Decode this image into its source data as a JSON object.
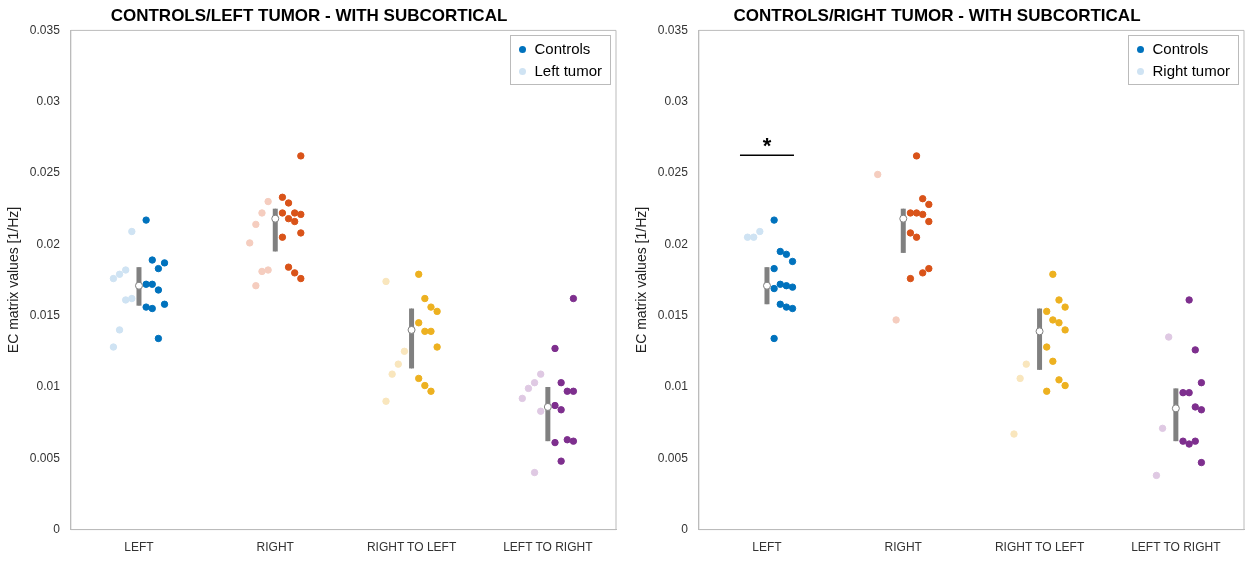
{
  "chart_data": [
    {
      "type": "scatter",
      "title": "CONTROLS/LEFT TUMOR - WITH SUBCORTICAL",
      "ylabel": "EC matrix values [1/Hz]",
      "categories": [
        "LEFT",
        "RIGHT",
        "RIGHT TO LEFT",
        "LEFT TO RIGHT"
      ],
      "ylim": [
        0,
        0.035
      ],
      "yticks": [
        0,
        0.005,
        0.01,
        0.015,
        0.02,
        0.025,
        0.03,
        0.035
      ],
      "legend": "top right",
      "grid": false,
      "marker": "circle",
      "series": [
        {
          "name": "Controls",
          "color": "#0072bd",
          "x": [
            "LEFT",
            "LEFT",
            "LEFT",
            "LEFT",
            "LEFT",
            "LEFT",
            "LEFT",
            "LEFT",
            "LEFT",
            "LEFT",
            "LEFT",
            "RIGHT",
            "RIGHT",
            "RIGHT",
            "RIGHT",
            "RIGHT",
            "RIGHT",
            "RIGHT",
            "RIGHT",
            "RIGHT",
            "RIGHT",
            "RIGHT",
            "RIGHT",
            "RIGHT",
            "RIGHT TO LEFT",
            "RIGHT TO LEFT",
            "RIGHT TO LEFT",
            "RIGHT TO LEFT",
            "RIGHT TO LEFT",
            "RIGHT TO LEFT",
            "RIGHT TO LEFT",
            "RIGHT TO LEFT",
            "RIGHT TO LEFT",
            "RIGHT TO LEFT",
            "RIGHT TO LEFT",
            "LEFT TO RIGHT",
            "LEFT TO RIGHT",
            "LEFT TO RIGHT",
            "LEFT TO RIGHT",
            "LEFT TO RIGHT",
            "LEFT TO RIGHT",
            "LEFT TO RIGHT",
            "LEFT TO RIGHT",
            "LEFT TO RIGHT",
            "LEFT TO RIGHT",
            "LEFT TO RIGHT"
          ],
          "values": [
            0.0217,
            0.0189,
            0.0183,
            0.0187,
            0.0172,
            0.0172,
            0.0168,
            0.0158,
            0.0156,
            0.0155,
            0.0134,
            0.0262,
            0.0233,
            0.0229,
            0.0222,
            0.0221,
            0.0222,
            0.0218,
            0.0216,
            0.0208,
            0.0205,
            0.0184,
            0.018,
            0.0176,
            0.0179,
            0.0162,
            0.0156,
            0.0153,
            0.0145,
            0.0139,
            0.0139,
            0.0128,
            0.0106,
            0.0101,
            0.0097,
            0.0162,
            0.0127,
            0.0103,
            0.0097,
            0.0097,
            0.0087,
            0.0084,
            0.0063,
            0.0062,
            0.0061,
            0.0048
          ],
          "colors": [
            "#0072bd",
            "#0072bd",
            "#0072bd",
            "#0072bd",
            "#0072bd",
            "#0072bd",
            "#0072bd",
            "#0072bd",
            "#0072bd",
            "#0072bd",
            "#0072bd",
            "#d95319",
            "#d95319",
            "#d95319",
            "#d95319",
            "#d95319",
            "#d95319",
            "#d95319",
            "#d95319",
            "#d95319",
            "#d95319",
            "#d95319",
            "#d95319",
            "#d95319",
            "#edb120",
            "#edb120",
            "#edb120",
            "#edb120",
            "#edb120",
            "#edb120",
            "#edb120",
            "#edb120",
            "#edb120",
            "#edb120",
            "#edb120",
            "#7e2f8e",
            "#7e2f8e",
            "#7e2f8e",
            "#7e2f8e",
            "#7e2f8e",
            "#7e2f8e",
            "#7e2f8e",
            "#7e2f8e",
            "#7e2f8e",
            "#7e2f8e",
            "#7e2f8e"
          ]
        },
        {
          "name": "Left tumor",
          "color": "#cfe3f3",
          "x": [
            "LEFT",
            "LEFT",
            "LEFT",
            "LEFT",
            "LEFT",
            "LEFT",
            "LEFT",
            "LEFT",
            "RIGHT",
            "RIGHT",
            "RIGHT",
            "RIGHT",
            "RIGHT",
            "RIGHT",
            "RIGHT",
            "RIGHT TO LEFT",
            "RIGHT TO LEFT",
            "RIGHT TO LEFT",
            "RIGHT TO LEFT",
            "RIGHT TO LEFT",
            "LEFT TO RIGHT",
            "LEFT TO RIGHT",
            "LEFT TO RIGHT",
            "LEFT TO RIGHT",
            "LEFT TO RIGHT",
            "LEFT TO RIGHT"
          ],
          "values": [
            0.0209,
            0.0182,
            0.0179,
            0.0176,
            0.0162,
            0.0161,
            0.014,
            0.0128,
            0.023,
            0.0222,
            0.0214,
            0.0201,
            0.0182,
            0.0181,
            0.0171,
            0.0174,
            0.0125,
            0.0116,
            0.0109,
            0.009,
            0.0109,
            0.0103,
            0.0099,
            0.0092,
            0.0083,
            0.004
          ],
          "colors": [
            "#cfe3f3",
            "#cfe3f3",
            "#cfe3f3",
            "#cfe3f3",
            "#cfe3f3",
            "#cfe3f3",
            "#cfe3f3",
            "#cfe3f3",
            "#f5cdbf",
            "#f5cdbf",
            "#f5cdbf",
            "#f5cdbf",
            "#f5cdbf",
            "#f5cdbf",
            "#f5cdbf",
            "#f9e6bd",
            "#f9e6bd",
            "#f9e6bd",
            "#f9e6bd",
            "#f9e6bd",
            "#dfc9e3",
            "#dfc9e3",
            "#dfc9e3",
            "#dfc9e3",
            "#dfc9e3",
            "#dfc9e3"
          ]
        },
        {
          "type": "box",
          "color": "#808080",
          "boxes": [
            {
              "low": 0.0157,
              "q1": 0.0157,
              "median": 0.0171,
              "q3": 0.0184,
              "high": 0.0184
            },
            {
              "low": 0.0195,
              "q1": 0.0195,
              "median": 0.0218,
              "q3": 0.0225,
              "high": 0.0225
            },
            {
              "low": 0.0113,
              "q1": 0.0113,
              "median": 0.014,
              "q3": 0.0155,
              "high": 0.0155
            },
            {
              "low": 0.0062,
              "q1": 0.0062,
              "median": 0.0086,
              "q3": 0.01,
              "high": 0.01
            }
          ]
        }
      ]
    },
    {
      "type": "scatter",
      "title": "CONTROLS/RIGHT TUMOR - WITH SUBCORTICAL",
      "ylabel": "EC matrix values [1/Hz]",
      "categories": [
        "LEFT",
        "RIGHT",
        "RIGHT TO LEFT",
        "LEFT TO RIGHT"
      ],
      "ylim": [
        0,
        0.035
      ],
      "yticks": [
        0,
        0.005,
        0.01,
        0.015,
        0.02,
        0.025,
        0.03,
        0.035
      ],
      "legend": "top right",
      "grid": false,
      "marker": "circle",
      "annotations": [
        "*"
      ],
      "series": [
        {
          "name": "Controls",
          "color": "#0072bd",
          "x": [
            "LEFT",
            "LEFT",
            "LEFT",
            "LEFT",
            "LEFT",
            "LEFT",
            "LEFT",
            "LEFT",
            "LEFT",
            "LEFT",
            "LEFT",
            "LEFT",
            "LEFT",
            "RIGHT",
            "RIGHT",
            "RIGHT",
            "RIGHT",
            "RIGHT",
            "RIGHT",
            "RIGHT",
            "RIGHT",
            "RIGHT",
            "RIGHT",
            "RIGHT",
            "RIGHT",
            "RIGHT TO LEFT",
            "RIGHT TO LEFT",
            "RIGHT TO LEFT",
            "RIGHT TO LEFT",
            "RIGHT TO LEFT",
            "RIGHT TO LEFT",
            "RIGHT TO LEFT",
            "RIGHT TO LEFT",
            "RIGHT TO LEFT",
            "RIGHT TO LEFT",
            "RIGHT TO LEFT",
            "RIGHT TO LEFT",
            "LEFT TO RIGHT",
            "LEFT TO RIGHT",
            "LEFT TO RIGHT",
            "LEFT TO RIGHT",
            "LEFT TO RIGHT",
            "LEFT TO RIGHT",
            "LEFT TO RIGHT",
            "LEFT TO RIGHT",
            "LEFT TO RIGHT",
            "LEFT TO RIGHT",
            "LEFT TO RIGHT"
          ],
          "values": [
            0.0217,
            0.0195,
            0.0193,
            0.0188,
            0.0183,
            0.0172,
            0.0171,
            0.017,
            0.0169,
            0.0158,
            0.0156,
            0.0155,
            0.0134,
            0.0262,
            0.0232,
            0.0228,
            0.0222,
            0.0222,
            0.0221,
            0.0216,
            0.0208,
            0.0205,
            0.018,
            0.0183,
            0.0176,
            0.0179,
            0.0161,
            0.0156,
            0.0153,
            0.0147,
            0.0145,
            0.014,
            0.0128,
            0.0118,
            0.0105,
            0.0101,
            0.0097,
            0.0161,
            0.0126,
            0.0103,
            0.0096,
            0.0096,
            0.0086,
            0.0084,
            0.0062,
            0.006,
            0.0062,
            0.0047
          ],
          "colors": [
            "#0072bd",
            "#0072bd",
            "#0072bd",
            "#0072bd",
            "#0072bd",
            "#0072bd",
            "#0072bd",
            "#0072bd",
            "#0072bd",
            "#0072bd",
            "#0072bd",
            "#0072bd",
            "#0072bd",
            "#d95319",
            "#d95319",
            "#d95319",
            "#d95319",
            "#d95319",
            "#d95319",
            "#d95319",
            "#d95319",
            "#d95319",
            "#d95319",
            "#d95319",
            "#d95319",
            "#edb120",
            "#edb120",
            "#edb120",
            "#edb120",
            "#edb120",
            "#edb120",
            "#edb120",
            "#edb120",
            "#edb120",
            "#edb120",
            "#edb120",
            "#edb120",
            "#7e2f8e",
            "#7e2f8e",
            "#7e2f8e",
            "#7e2f8e",
            "#7e2f8e",
            "#7e2f8e",
            "#7e2f8e",
            "#7e2f8e",
            "#7e2f8e",
            "#7e2f8e",
            "#7e2f8e"
          ]
        },
        {
          "name": "Right tumor",
          "color": "#cfe3f3",
          "x": [
            "LEFT",
            "LEFT",
            "LEFT",
            "RIGHT",
            "RIGHT",
            "RIGHT TO LEFT",
            "RIGHT TO LEFT",
            "RIGHT TO LEFT",
            "LEFT TO RIGHT",
            "LEFT TO RIGHT",
            "LEFT TO RIGHT"
          ],
          "values": [
            0.0209,
            0.0205,
            0.0205,
            0.0249,
            0.0147,
            0.0116,
            0.0106,
            0.0067,
            0.0135,
            0.0071,
            0.0038
          ],
          "colors": [
            "#cfe3f3",
            "#cfe3f3",
            "#cfe3f3",
            "#f5cdbf",
            "#f5cdbf",
            "#f9e6bd",
            "#f9e6bd",
            "#f9e6bd",
            "#dfc9e3",
            "#dfc9e3",
            "#dfc9e3"
          ]
        },
        {
          "type": "box",
          "color": "#808080",
          "boxes": [
            {
              "low": 0.0158,
              "q1": 0.0158,
              "median": 0.0171,
              "q3": 0.0184,
              "high": 0.0184
            },
            {
              "low": 0.0194,
              "q1": 0.0194,
              "median": 0.0218,
              "q3": 0.0225,
              "high": 0.0225
            },
            {
              "low": 0.0112,
              "q1": 0.0112,
              "median": 0.0139,
              "q3": 0.0155,
              "high": 0.0155
            },
            {
              "low": 0.0062,
              "q1": 0.0062,
              "median": 0.0085,
              "q3": 0.0099,
              "high": 0.0099
            }
          ]
        }
      ]
    }
  ]
}
